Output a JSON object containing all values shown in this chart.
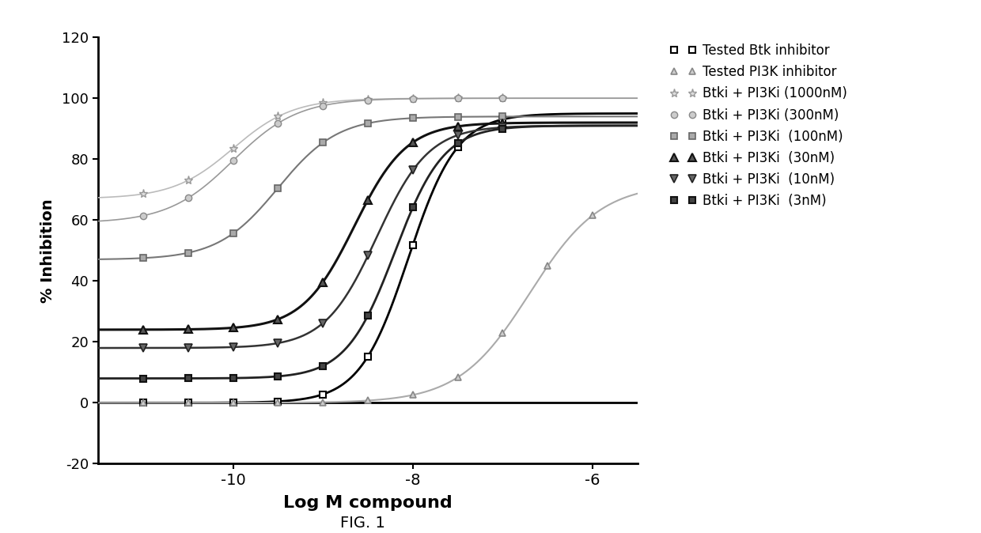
{
  "xlabel": "Log M compound",
  "ylabel": "% Inhibition",
  "fig_label": "FIG. 1",
  "xlim": [
    -11.5,
    -5.5
  ],
  "ylim": [
    -20,
    120
  ],
  "xticks": [
    -10,
    -8,
    -6
  ],
  "yticks": [
    -20,
    0,
    20,
    40,
    60,
    80,
    100,
    120
  ],
  "series": [
    {
      "label": "Tested Btk inhibitor",
      "bottom": 0,
      "top": 95,
      "ec50": -8.05,
      "hill": 1.6,
      "line_color": "#000000",
      "line_lw": 2.0,
      "marker": "s",
      "msize": 6,
      "mfc": "white",
      "mec": "#000000",
      "mew": 1.5,
      "xpts": [
        -11.0,
        -10.5,
        -10.0,
        -9.5,
        -9.0,
        -8.5,
        -8.0,
        -7.5,
        -7.0
      ]
    },
    {
      "label": "Tested PI3K inhibitor",
      "bottom": 0,
      "top": 72,
      "ec50": -6.7,
      "hill": 1.1,
      "line_color": "#aaaaaa",
      "line_lw": 1.5,
      "marker": "^",
      "msize": 6,
      "mfc": "#cccccc",
      "mec": "#888888",
      "mew": 1.2,
      "xpts": [
        -11.0,
        -10.5,
        -10.0,
        -9.5,
        -9.0,
        -8.5,
        -8.0,
        -7.5,
        -7.0,
        -6.5,
        -6.0
      ]
    },
    {
      "label": "Btki + PI3Ki (1000nM)",
      "bottom": 67,
      "top": 100,
      "ec50": -10.0,
      "hill": 1.3,
      "line_color": "#bbbbbb",
      "line_lw": 1.2,
      "marker": "*",
      "msize": 8,
      "mfc": "#dddddd",
      "mec": "#999999",
      "mew": 1.0,
      "xpts": [
        -11.0,
        -10.5,
        -10.0,
        -9.5,
        -9.0,
        -8.5,
        -8.0,
        -7.5,
        -7.0
      ]
    },
    {
      "label": "Btki + PI3Ki (300nM)",
      "bottom": 59,
      "top": 100,
      "ec50": -10.0,
      "hill": 1.2,
      "line_color": "#999999",
      "line_lw": 1.2,
      "marker": "o",
      "msize": 6,
      "mfc": "#cccccc",
      "mec": "#888888",
      "mew": 1.0,
      "xpts": [
        -11.0,
        -10.5,
        -10.0,
        -9.5,
        -9.0,
        -8.5,
        -8.0,
        -7.5,
        -7.0
      ]
    },
    {
      "label": "Btki + PI3Ki  (100nM)",
      "bottom": 47,
      "top": 94,
      "ec50": -9.5,
      "hill": 1.3,
      "line_color": "#777777",
      "line_lw": 1.5,
      "marker": "s",
      "msize": 6,
      "mfc": "#aaaaaa",
      "mec": "#666666",
      "mew": 1.2,
      "xpts": [
        -11.0,
        -10.5,
        -10.0,
        -9.5,
        -9.0,
        -8.5,
        -8.0,
        -7.5,
        -7.0
      ]
    },
    {
      "label": "Btki + PI3Ki  (30nM)",
      "bottom": 24,
      "top": 92,
      "ec50": -8.65,
      "hill": 1.5,
      "line_color": "#111111",
      "line_lw": 2.2,
      "marker": "^",
      "msize": 7,
      "mfc": "#555555",
      "mec": "#111111",
      "mew": 1.5,
      "xpts": [
        -11.0,
        -10.5,
        -10.0,
        -9.5,
        -9.0,
        -8.5,
        -8.0,
        -7.5,
        -7.0
      ]
    },
    {
      "label": "Btki + PI3Ki  (10nM)",
      "bottom": 18,
      "top": 91,
      "ec50": -8.4,
      "hill": 1.5,
      "line_color": "#333333",
      "line_lw": 1.8,
      "marker": "v",
      "msize": 7,
      "mfc": "#666666",
      "mec": "#222222",
      "mew": 1.2,
      "xpts": [
        -11.0,
        -10.5,
        -10.0,
        -9.5,
        -9.0,
        -8.5,
        -8.0,
        -7.5,
        -7.0
      ]
    },
    {
      "label": "Btki + PI3Ki  (3nM)",
      "bottom": 8,
      "top": 91,
      "ec50": -8.2,
      "hill": 1.6,
      "line_color": "#222222",
      "line_lw": 2.0,
      "marker": "s",
      "msize": 6,
      "mfc": "#444444",
      "mec": "#111111",
      "mew": 1.5,
      "xpts": [
        -11.0,
        -10.5,
        -10.0,
        -9.5,
        -9.0,
        -8.5,
        -8.0,
        -7.5,
        -7.0
      ]
    }
  ]
}
